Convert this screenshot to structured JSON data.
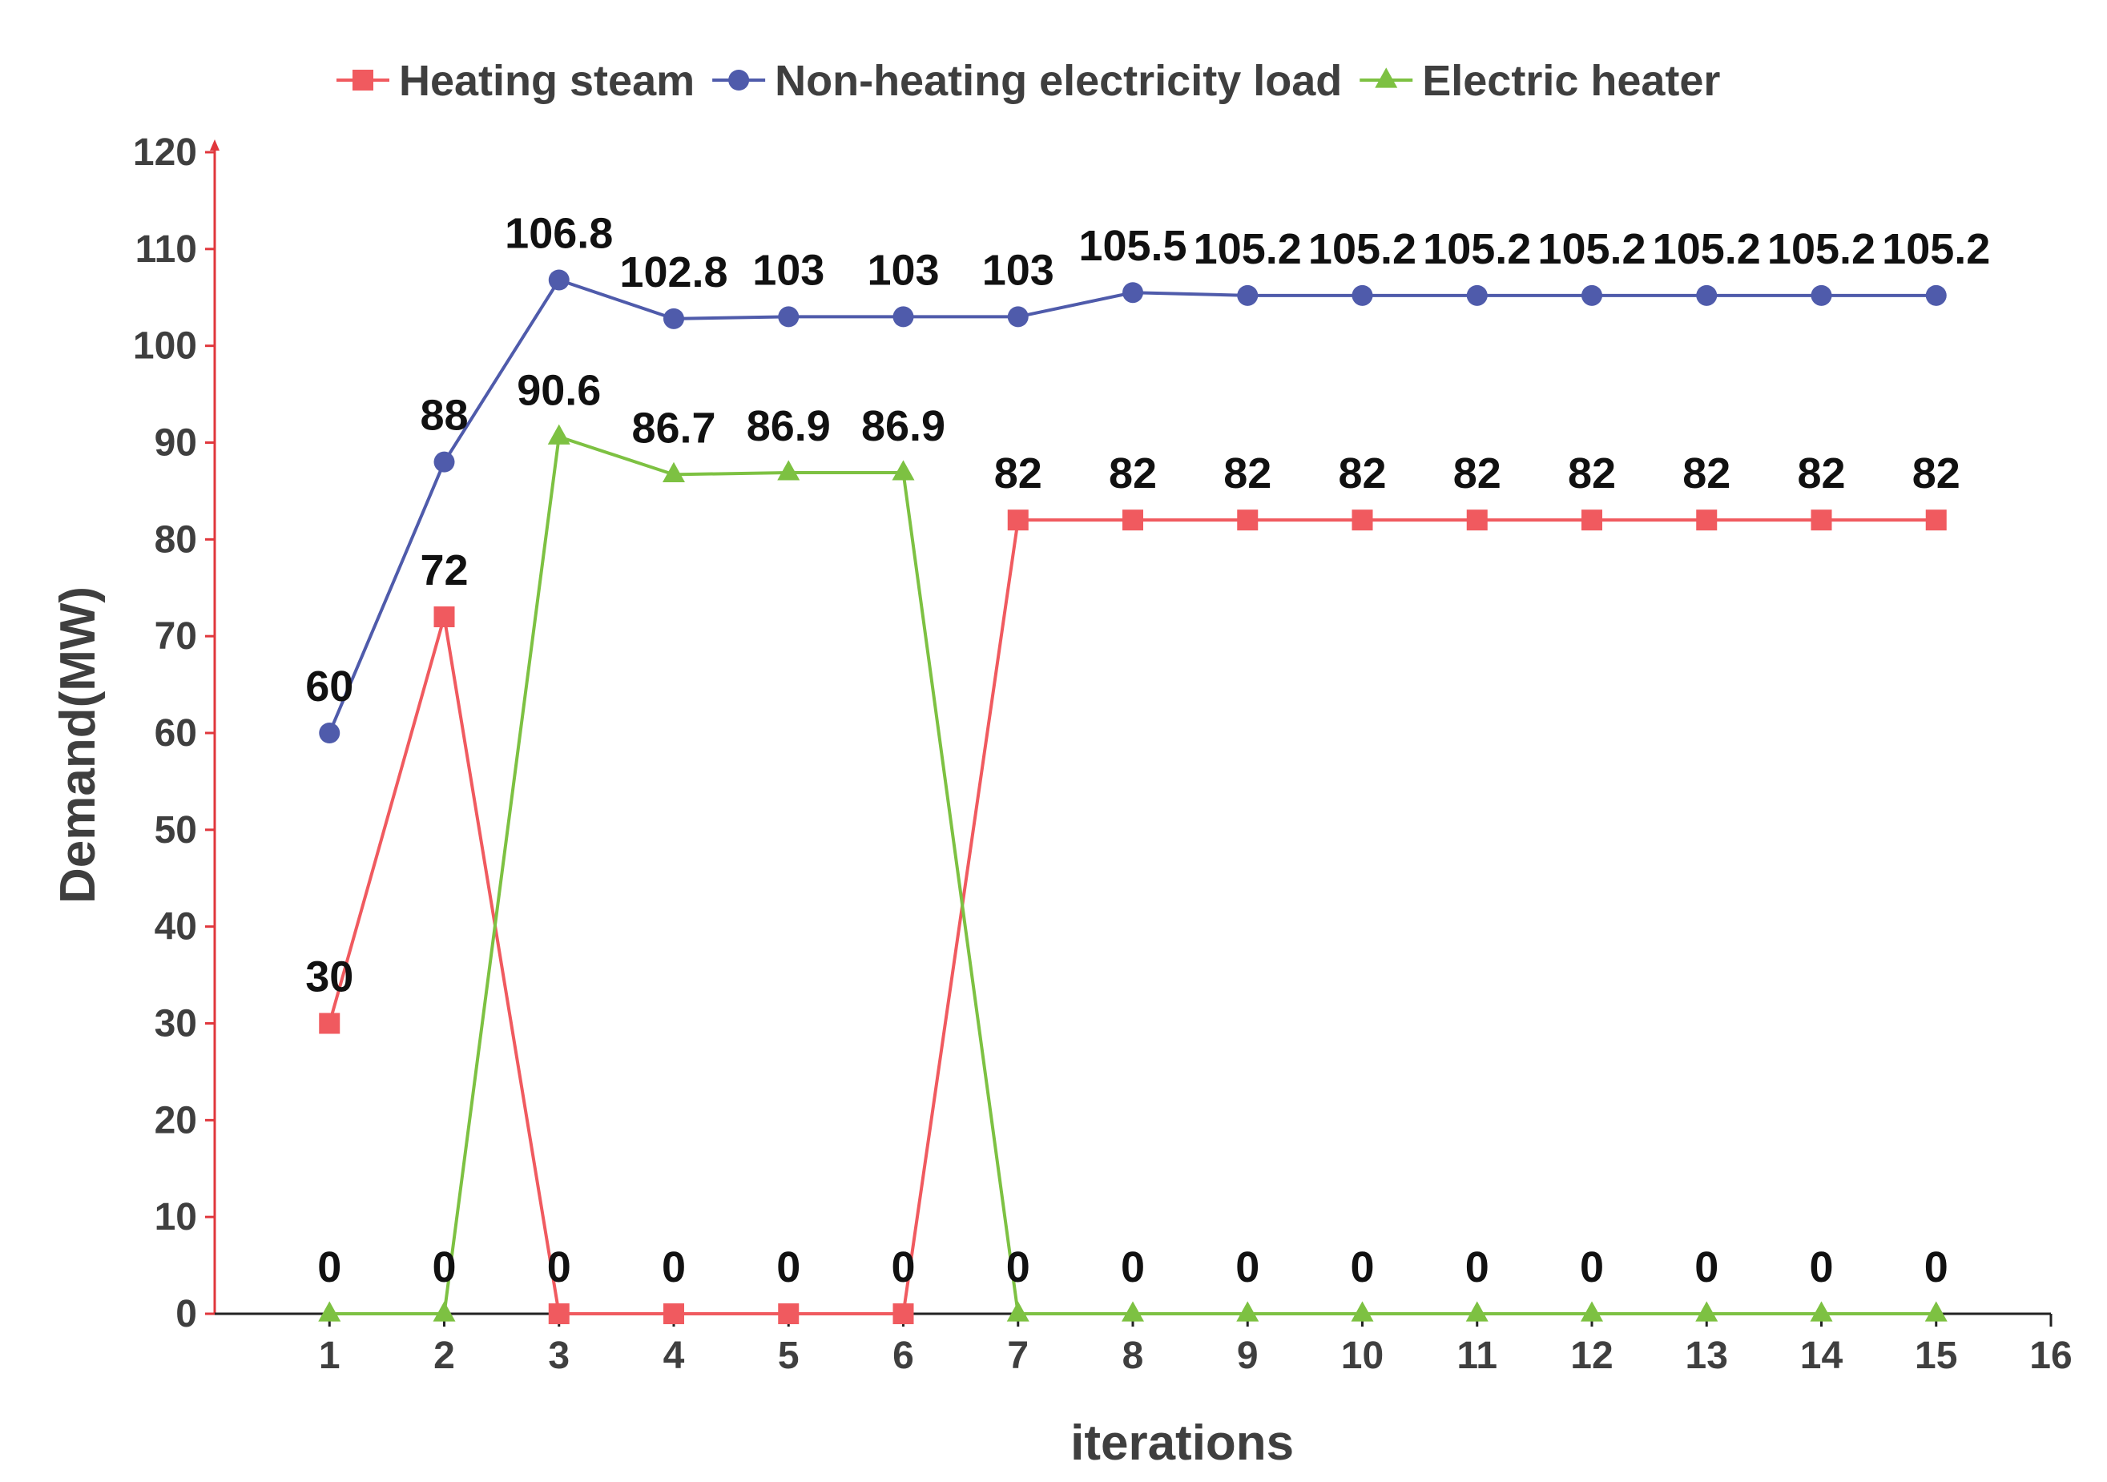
{
  "chart_data": {
    "type": "line",
    "title": "",
    "xlabel": "iterations",
    "ylabel": "Demand(MW)",
    "xlim": [
      0,
      16
    ],
    "ylim": [
      0,
      120
    ],
    "x_ticks": [
      1,
      2,
      3,
      4,
      5,
      6,
      7,
      8,
      9,
      10,
      11,
      12,
      13,
      14,
      15,
      16
    ],
    "y_ticks": [
      0,
      10,
      20,
      30,
      40,
      50,
      60,
      70,
      80,
      90,
      100,
      110,
      120
    ],
    "grid": false,
    "legend_position": "top",
    "x": [
      1,
      2,
      3,
      4,
      5,
      6,
      7,
      8,
      9,
      10,
      11,
      12,
      13,
      14,
      15
    ],
    "series": [
      {
        "name": "Heating steam",
        "marker": "square",
        "color": "#f05a5f",
        "values": [
          30,
          72,
          0,
          0,
          0,
          0,
          82,
          82,
          82,
          82,
          82,
          82,
          82,
          82,
          82
        ],
        "labels": [
          "30",
          "72",
          "0",
          "0",
          "0",
          "0",
          "82",
          "82",
          "82",
          "82",
          "82",
          "82",
          "82",
          "82",
          "82"
        ]
      },
      {
        "name": "Non-heating electricity load",
        "marker": "circle",
        "color": "#4f5bab",
        "values": [
          60,
          88,
          106.8,
          102.8,
          103,
          103,
          103,
          105.5,
          105.2,
          105.2,
          105.2,
          105.2,
          105.2,
          105.2,
          105.2
        ],
        "labels": [
          "60",
          "88",
          "106.8",
          "102.8",
          "103",
          "103",
          "103",
          "105.5",
          "105.2",
          "105.2",
          "105.2",
          "105.2",
          "105.2",
          "105.2",
          "105.2"
        ]
      },
      {
        "name": "Electric heater",
        "marker": "triangle",
        "color": "#7dc142",
        "values": [
          0,
          0,
          90.6,
          86.7,
          86.9,
          86.9,
          0,
          0,
          0,
          0,
          0,
          0,
          0,
          0,
          0
        ],
        "labels": [
          "0",
          "0",
          "90.6",
          "86.7",
          "86.9",
          "86.9",
          "0",
          "0",
          "0",
          "0",
          "0",
          "0",
          "0",
          "0",
          "0"
        ]
      }
    ]
  },
  "colors": {
    "y_axis": "#e0373c",
    "x_axis": "#222222",
    "tick_text": "#3f3f3f"
  }
}
